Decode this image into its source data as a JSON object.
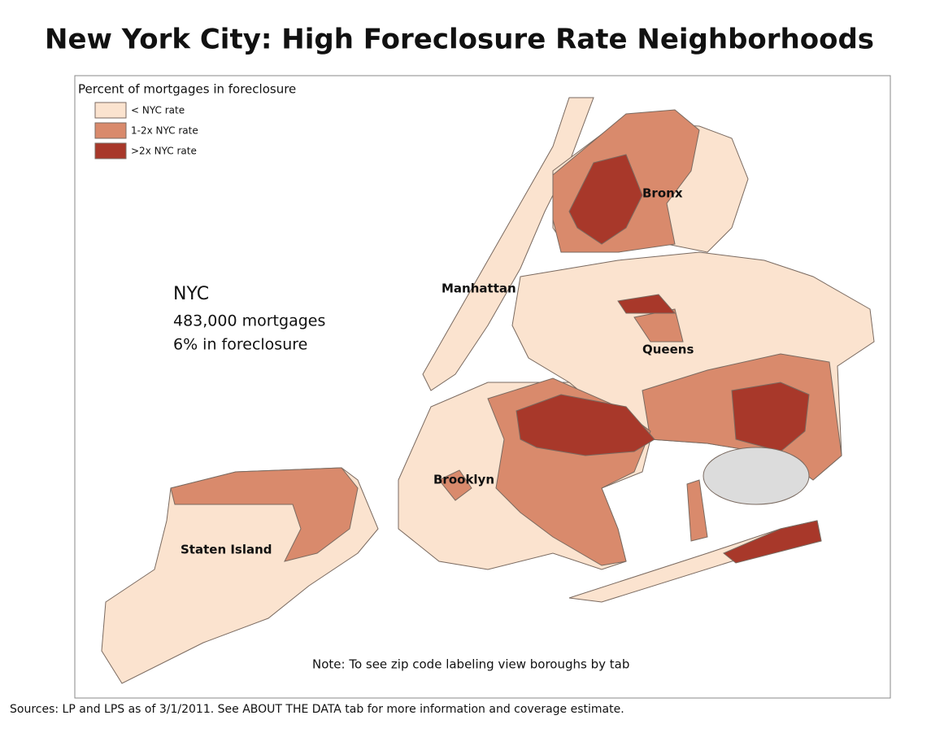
{
  "header": {
    "title": "New York City: High Foreclosure Rate Neighborhoods"
  },
  "legend": {
    "title": "Percent of mortgages in foreclosure",
    "items": [
      {
        "label": "< NYC rate",
        "color": "#fbe3cf"
      },
      {
        "label": "1-2x NYC rate",
        "color": "#d98a6c"
      },
      {
        "label": ">2x NYC rate",
        "color": "#a8382a"
      }
    ]
  },
  "boroughs": [
    "Bronx",
    "Manhattan",
    "Queens",
    "Brooklyn",
    "Staten Island"
  ],
  "summary": {
    "heading": "NYC",
    "lines": [
      "483,000 mortgages",
      "6% in foreclosure"
    ]
  },
  "note": "Note: To see zip code labeling view boroughs by tab",
  "sources": "Sources: LP and LPS as of 3/1/2011. See ABOUT THE DATA tab for more information and coverage estimate."
}
